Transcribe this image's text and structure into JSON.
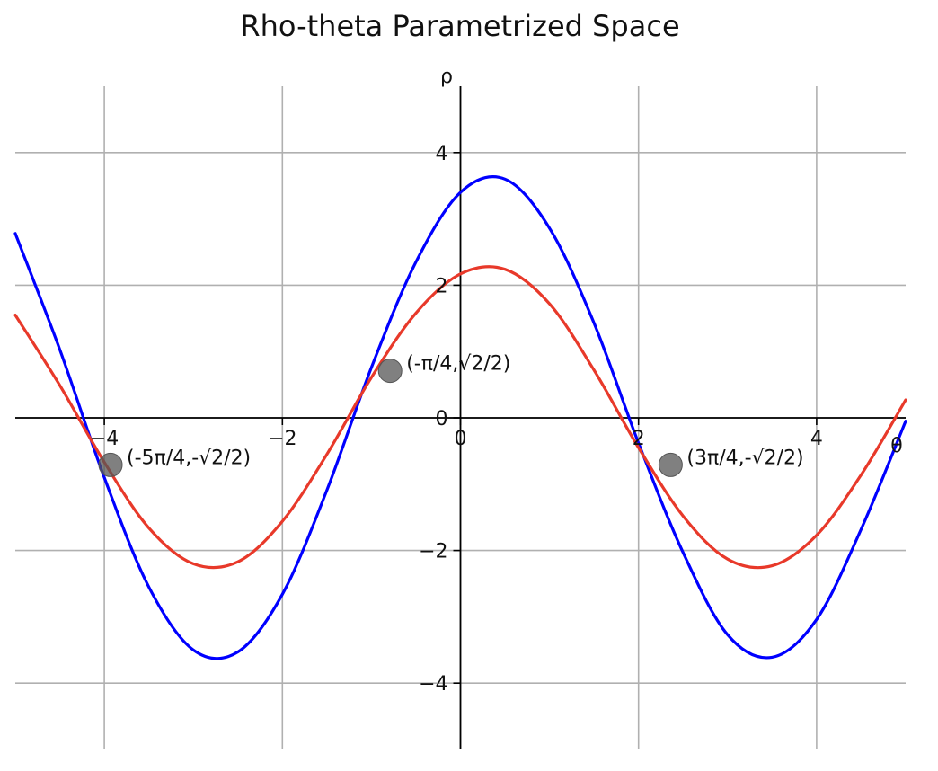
{
  "chart_data": {
    "type": "line",
    "title": "Rho-theta Parametrized Space",
    "xlabel": "θ",
    "ylabel": "ρ",
    "xlim": [
      -5,
      5
    ],
    "ylim": [
      -5,
      5
    ],
    "grid": true,
    "x_ticks": [
      -4,
      -2,
      0,
      2,
      4
    ],
    "y_ticks": [
      -4,
      -2,
      0,
      2,
      4
    ],
    "x_tick_labels": [
      "−4",
      "−2",
      "0",
      "2",
      "4"
    ],
    "y_tick_labels": [
      "−4",
      "−2",
      "0",
      "2",
      "4"
    ],
    "series": [
      {
        "color": "#0000ff",
        "x": [
          -5.0,
          -4.5,
          -4.0,
          -3.5,
          -3.0,
          -2.5,
          -2.0,
          -1.5,
          -1.0,
          -0.5,
          0.0,
          0.5,
          1.0,
          1.5,
          2.0,
          2.5,
          3.0,
          3.5,
          4.0,
          4.5,
          5.0
        ],
        "values": [
          2.78,
          1.03,
          -0.9,
          -2.55,
          -3.5,
          -3.53,
          -2.66,
          -1.09,
          0.76,
          2.35,
          3.4,
          3.6,
          2.86,
          1.43,
          -0.38,
          -2.03,
          -3.27,
          -3.61,
          -3.04,
          -1.68,
          -0.05
        ]
      },
      {
        "color": "#e8392a",
        "x": [
          -5.0,
          -4.5,
          -4.0,
          -3.5,
          -3.0,
          -2.5,
          -2.0,
          -1.5,
          -1.0,
          -0.5,
          0.0,
          0.5,
          1.0,
          1.5,
          2.0,
          2.5,
          3.0,
          3.5,
          4.0,
          4.5,
          5.0
        ],
        "values": [
          1.55,
          0.49,
          -0.67,
          -1.66,
          -2.2,
          -2.17,
          -1.56,
          -0.55,
          0.61,
          1.58,
          2.17,
          2.24,
          1.72,
          0.72,
          -0.45,
          -1.48,
          -2.13,
          -2.23,
          -1.77,
          -0.86,
          0.27
        ]
      }
    ],
    "points": [
      {
        "x": -3.93,
        "y": -0.71,
        "label": "(-5π/4,-√2/2)"
      },
      {
        "x": -0.79,
        "y": 0.71,
        "label": "(-π/4,√2/2)"
      },
      {
        "x": 2.36,
        "y": -0.71,
        "label": "(3π/4,-√2/2)"
      }
    ],
    "point_color": "#555555"
  }
}
